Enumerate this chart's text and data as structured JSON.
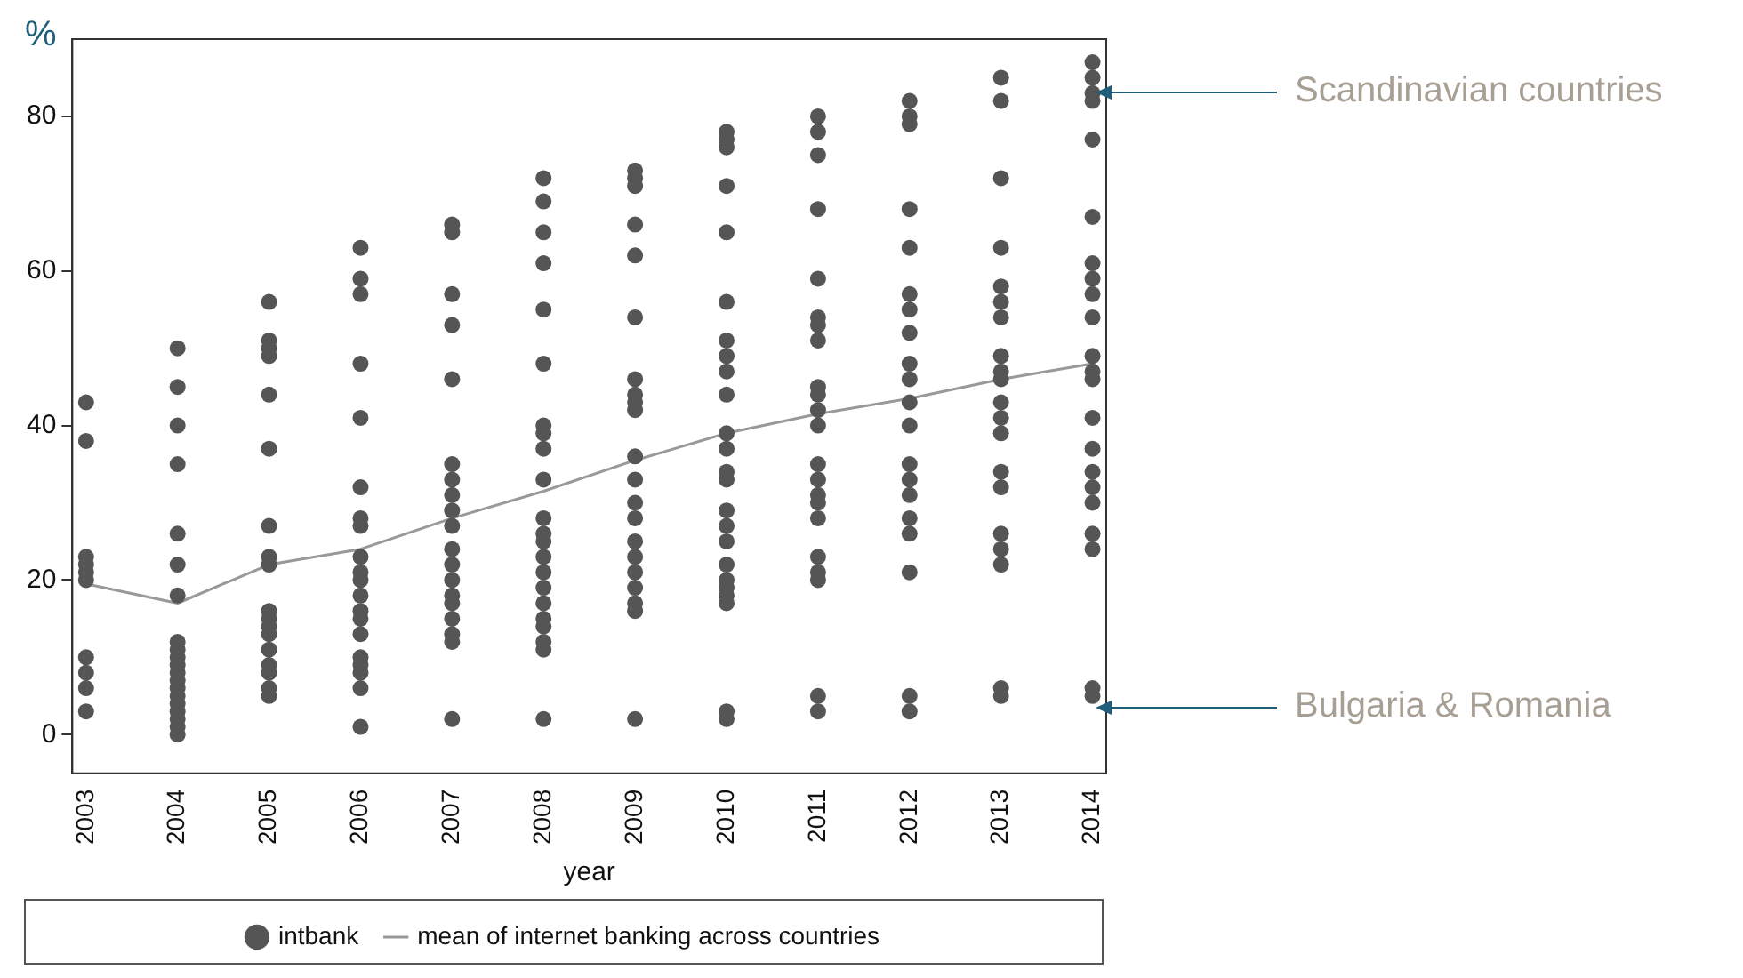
{
  "chart_data": {
    "type": "scatter",
    "ylabel": "%",
    "xlabel": "year",
    "xlim": [
      2002.85,
      2014.15
    ],
    "xticks": [
      2003,
      2004,
      2005,
      2006,
      2007,
      2008,
      2009,
      2010,
      2011,
      2012,
      2013,
      2014
    ],
    "ylim": [
      -5,
      90
    ],
    "yticks": [
      0,
      20,
      40,
      60,
      80
    ],
    "grid": false,
    "legend": "bottom",
    "marker": "circle",
    "series": [
      {
        "name": "intbank",
        "color": "#555555",
        "x": [
          2003,
          2003,
          2003,
          2003,
          2003,
          2003,
          2003,
          2003,
          2003,
          2003,
          2004,
          2004,
          2004,
          2004,
          2004,
          2004,
          2004,
          2004,
          2004,
          2004,
          2004,
          2004,
          2004,
          2004,
          2004,
          2004,
          2004,
          2004,
          2004,
          2004,
          2005,
          2005,
          2005,
          2005,
          2005,
          2005,
          2005,
          2005,
          2005,
          2005,
          2005,
          2005,
          2005,
          2005,
          2005,
          2005,
          2005,
          2005,
          2006,
          2006,
          2006,
          2006,
          2006,
          2006,
          2006,
          2006,
          2006,
          2006,
          2006,
          2006,
          2006,
          2006,
          2006,
          2006,
          2006,
          2006,
          2006,
          2006,
          2007,
          2007,
          2007,
          2007,
          2007,
          2007,
          2007,
          2007,
          2007,
          2007,
          2007,
          2007,
          2007,
          2007,
          2007,
          2007,
          2007,
          2007,
          2007,
          2008,
          2008,
          2008,
          2008,
          2008,
          2008,
          2008,
          2008,
          2008,
          2008,
          2008,
          2008,
          2008,
          2008,
          2008,
          2008,
          2008,
          2008,
          2008,
          2008,
          2008,
          2008,
          2009,
          2009,
          2009,
          2009,
          2009,
          2009,
          2009,
          2009,
          2009,
          2009,
          2009,
          2009,
          2009,
          2009,
          2009,
          2009,
          2009,
          2009,
          2009,
          2009,
          2009,
          2010,
          2010,
          2010,
          2010,
          2010,
          2010,
          2010,
          2010,
          2010,
          2010,
          2010,
          2010,
          2010,
          2010,
          2010,
          2010,
          2010,
          2010,
          2010,
          2010,
          2010,
          2010,
          2010,
          2010,
          2011,
          2011,
          2011,
          2011,
          2011,
          2011,
          2011,
          2011,
          2011,
          2011,
          2011,
          2011,
          2011,
          2011,
          2011,
          2011,
          2011,
          2011,
          2011,
          2011,
          2011,
          2011,
          2012,
          2012,
          2012,
          2012,
          2012,
          2012,
          2012,
          2012,
          2012,
          2012,
          2012,
          2012,
          2012,
          2012,
          2012,
          2012,
          2012,
          2012,
          2012,
          2012,
          2013,
          2013,
          2013,
          2013,
          2013,
          2013,
          2013,
          2013,
          2013,
          2013,
          2013,
          2013,
          2013,
          2013,
          2013,
          2013,
          2013,
          2013,
          2013,
          2013,
          2014,
          2014,
          2014,
          2014,
          2014,
          2014,
          2014,
          2014,
          2014,
          2014,
          2014,
          2014,
          2014,
          2014,
          2014,
          2014,
          2014,
          2014,
          2014,
          2014,
          2014,
          2014
        ],
        "values": [
          43,
          38,
          23,
          22,
          21,
          20,
          10,
          8,
          6,
          3,
          50,
          45,
          40,
          35,
          26,
          22,
          18,
          12,
          11,
          10,
          9,
          8,
          7,
          6,
          5,
          4,
          3,
          2,
          1,
          0,
          56,
          51,
          50,
          49,
          44,
          37,
          27,
          23,
          22,
          16,
          15,
          14,
          13,
          11,
          9,
          8,
          6,
          5,
          63,
          59,
          57,
          48,
          41,
          32,
          28,
          27,
          23,
          21,
          20,
          18,
          16,
          15,
          13,
          10,
          9,
          8,
          6,
          1,
          66,
          65,
          57,
          53,
          46,
          35,
          33,
          31,
          29,
          27,
          24,
          22,
          20,
          18,
          17,
          15,
          13,
          12,
          2,
          72,
          69,
          65,
          61,
          55,
          48,
          40,
          39,
          37,
          33,
          28,
          26,
          25,
          23,
          21,
          19,
          17,
          15,
          14,
          12,
          11,
          2,
          73,
          72,
          71,
          66,
          62,
          54,
          46,
          44,
          43,
          42,
          36,
          33,
          30,
          28,
          25,
          23,
          21,
          19,
          17,
          16,
          2,
          78,
          77,
          76,
          71,
          65,
          56,
          51,
          49,
          47,
          44,
          39,
          37,
          34,
          33,
          29,
          27,
          25,
          22,
          20,
          19,
          18,
          17,
          3,
          2,
          80,
          78,
          75,
          68,
          59,
          54,
          53,
          51,
          45,
          44,
          42,
          40,
          35,
          33,
          31,
          30,
          28,
          23,
          21,
          20,
          5,
          3,
          82,
          80,
          79,
          68,
          63,
          57,
          55,
          52,
          48,
          46,
          43,
          40,
          35,
          33,
          31,
          28,
          26,
          21,
          5,
          3,
          85,
          82,
          72,
          63,
          58,
          56,
          54,
          49,
          47,
          46,
          43,
          41,
          39,
          34,
          32,
          26,
          24,
          22,
          6,
          5,
          87,
          85,
          83,
          82,
          77,
          67,
          61,
          59,
          57,
          54,
          49,
          47,
          46,
          41,
          37,
          34,
          32,
          30,
          26,
          24,
          6,
          5
        ]
      },
      {
        "name": "mean of internet banking across countries",
        "type": "line",
        "color": "#999999",
        "marker": "none",
        "x": [
          2003,
          2004,
          2005,
          2006,
          2007,
          2008,
          2009,
          2010,
          2011,
          2012,
          2013,
          2014
        ],
        "values": [
          19.5,
          17,
          22,
          24,
          28,
          31.5,
          35.5,
          39,
          41.5,
          43.5,
          46,
          48
        ]
      }
    ],
    "annotations": [
      "Scandinavian countries",
      "Bulgaria & Romania"
    ]
  }
}
